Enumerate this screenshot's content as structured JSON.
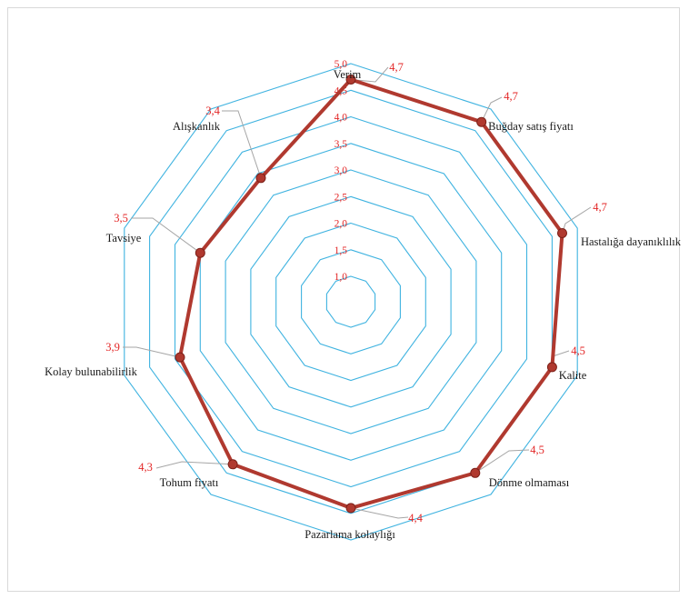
{
  "chart_data": {
    "type": "radar",
    "categories": [
      "Verim",
      "Buğday satış fiyatı",
      "Hastalığa dayanıklılık",
      "Kalite",
      "Dönme olmaması",
      "Pazarlama kolaylığı",
      "Tohum fiyatı",
      "Kolay bulunabilirlik",
      "Tavsiye",
      "Alışkanlık"
    ],
    "values": [
      4.7,
      4.7,
      4.7,
      4.5,
      4.5,
      4.4,
      4.3,
      3.9,
      3.5,
      3.4
    ],
    "value_labels": [
      "4,7",
      "4,7",
      "4,7",
      "4,5",
      "4,5",
      "4,4",
      "4,3",
      "3,9",
      "3,5",
      "3,4"
    ],
    "rlim": [
      1.0,
      5.0
    ],
    "ticks": [
      1.0,
      1.5,
      2.0,
      2.5,
      3.0,
      3.5,
      4.0,
      4.5,
      5.0
    ],
    "tick_labels": [
      "1,0",
      "1,5",
      "2,0",
      "2,5",
      "3,0",
      "3,5",
      "4,0",
      "4,5",
      "5,0"
    ],
    "grid": true,
    "legend": "none",
    "colors": {
      "grid": "#3fb3e0",
      "series": "#b0392f",
      "marker": "#b0392f",
      "leader": "#a6a6a6",
      "data_label": "#e32626",
      "tick_label": "#e32626",
      "axis_label": "#1a1a1a"
    }
  }
}
